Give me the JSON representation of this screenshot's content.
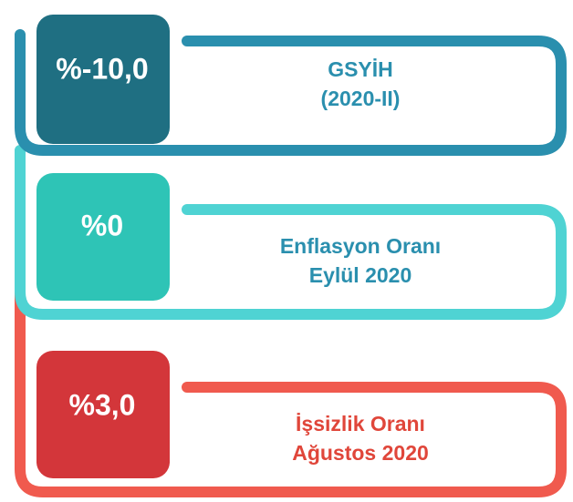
{
  "items": [
    {
      "value": "%-10,0",
      "label": [
        "GSYİH",
        "(2020-II)"
      ]
    },
    {
      "value": "%0",
      "label": [
        "Enflasyon Oranı",
        "Eylül 2020"
      ]
    },
    {
      "value": "%3,0",
      "label": [
        "İşsizlik Oranı",
        "Ağustos 2020"
      ]
    }
  ]
}
